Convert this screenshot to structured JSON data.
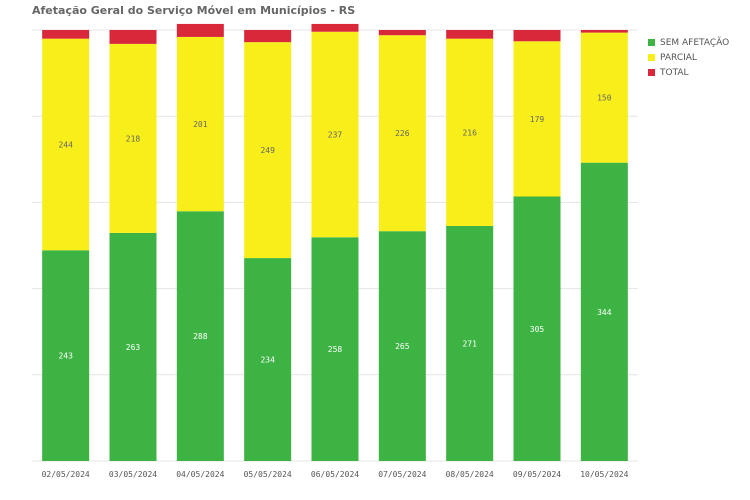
{
  "chart_data": {
    "type": "bar",
    "stacked": true,
    "title": "Afetação Geral do Serviço Móvel em Municípios - RS",
    "categories": [
      "02/05/2024",
      "03/05/2024",
      "04/05/2024",
      "05/05/2024",
      "06/05/2024",
      "07/05/2024",
      "08/05/2024",
      "09/05/2024",
      "10/05/2024"
    ],
    "series": [
      {
        "name": "SEM AFETAÇÃO",
        "color": "#3db344",
        "label_color": "#ffffff",
        "values": [
          243,
          263,
          288,
          234,
          258,
          265,
          271,
          305,
          344
        ]
      },
      {
        "name": "PARCIAL",
        "color": "#f8ee1a",
        "label_color": "#666666",
        "values": [
          244,
          218,
          201,
          249,
          237,
          226,
          216,
          179,
          150
        ]
      },
      {
        "name": "TOTAL",
        "color": "#d8283a",
        "label_color": "#ffffff",
        "values": [
          10,
          16,
          15,
          14,
          9,
          6,
          10,
          13,
          3
        ]
      }
    ],
    "ylim": [
      0,
      497
    ],
    "grid": true,
    "legend_position": "top-right",
    "show_labels": [
      "SEM AFETAÇÃO",
      "PARCIAL"
    ]
  }
}
